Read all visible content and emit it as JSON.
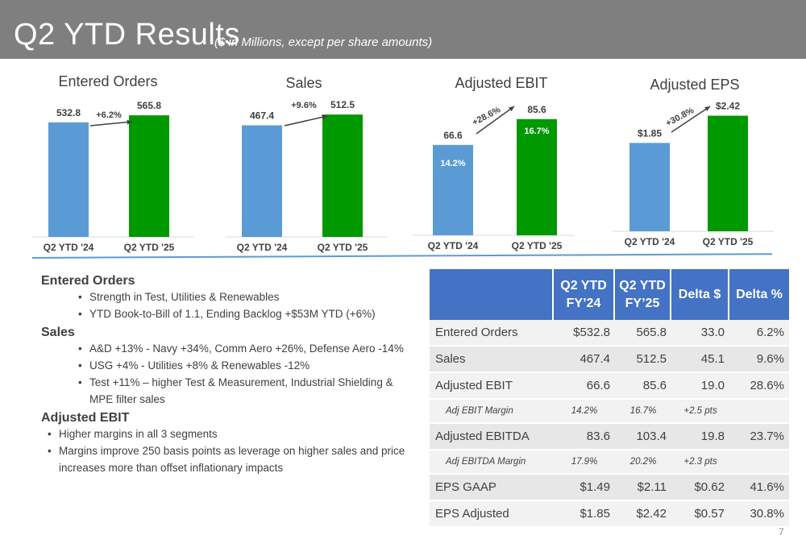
{
  "header": {
    "title": "Q2 YTD Results",
    "subtitle": "($ in Millions, except per share amounts)"
  },
  "colors": {
    "header_bg": "#7f7f7f",
    "prior_bar": "#5b9bd5",
    "current_bar": "#009900",
    "table_header": "#4472c4"
  },
  "chart_data": [
    {
      "type": "bar",
      "title": "Entered Orders",
      "categories": [
        "Q2 YTD '24",
        "Q2 YTD '25"
      ],
      "values": [
        532.8,
        565.8
      ],
      "value_labels": [
        "532.8",
        "565.8"
      ],
      "growth_label": "+6.2%",
      "ylim": [
        0,
        600
      ]
    },
    {
      "type": "bar",
      "title": "Sales",
      "categories": [
        "Q2 YTD '24",
        "Q2 YTD '25"
      ],
      "values": [
        467.4,
        512.5
      ],
      "value_labels": [
        "467.4",
        "512.5"
      ],
      "growth_label": "+9.6%",
      "ylim": [
        0,
        540
      ]
    },
    {
      "type": "bar",
      "title": "Adjusted EBIT",
      "categories": [
        "Q2 YTD '24",
        "Q2 YTD '25"
      ],
      "values": [
        66.6,
        85.6
      ],
      "value_labels": [
        "66.6",
        "85.6"
      ],
      "inner_labels": [
        "14.2%",
        "16.7%"
      ],
      "growth_label": "+28.6%",
      "ylim": [
        0,
        95
      ]
    },
    {
      "type": "bar",
      "title": "Adjusted EPS",
      "categories": [
        "Q2 YTD '24",
        "Q2 YTD '25"
      ],
      "values": [
        1.85,
        2.42
      ],
      "value_labels": [
        "$1.85",
        "$2.42"
      ],
      "growth_label": "+30.8%",
      "ylim": [
        0,
        2.7
      ]
    }
  ],
  "notes": {
    "orders_heading": "Entered Orders",
    "orders_bullets": [
      "Strength in Test, Utilities & Renewables",
      "YTD Book-to-Bill of 1.1, Ending Backlog +$53M YTD (+6%)"
    ],
    "sales_heading": "Sales",
    "sales_bullets": [
      "A&D +13% - Navy +34%, Comm Aero +26%, Defense Aero -14%",
      "USG +4% - Utilities +8% & Renewables -12%",
      "Test +11% – higher Test & Measurement, Industrial Shielding & MPE filter sales"
    ],
    "ebit_heading": "Adjusted EBIT",
    "ebit_bullets": [
      "Higher margins in all 3 segments",
      "Margins improve 250 basis points as leverage on higher sales and price increases more than offset inflationary impacts"
    ]
  },
  "table": {
    "headers": [
      "",
      "Q2 YTD FY’24",
      "Q2 YTD FY’25",
      "Delta $",
      "Delta %"
    ],
    "rows": [
      {
        "label": "Entered Orders",
        "values": [
          "$532.8",
          "565.8",
          "33.0",
          "6.2%"
        ]
      },
      {
        "label": "Sales",
        "values": [
          "467.4",
          "512.5",
          "45.1",
          "9.6%"
        ]
      },
      {
        "label": "Adjusted EBIT",
        "values": [
          "66.6",
          "85.6",
          "19.0",
          "28.6%"
        ]
      },
      {
        "label": "Adj EBIT Margin",
        "values": [
          "14.2%",
          "16.7%",
          "+2.5 pts",
          ""
        ]
      },
      {
        "label": "Adjusted EBITDA",
        "values": [
          "83.6",
          "103.4",
          "19.8",
          "23.7%"
        ]
      },
      {
        "label": "Adj EBITDA Margin",
        "values": [
          "17.9%",
          "20.2%",
          "+2.3 pts",
          ""
        ]
      },
      {
        "label": "EPS GAAP",
        "values": [
          "$1.49",
          "$2.11",
          "$0.62",
          "41.6%"
        ]
      },
      {
        "label": "EPS Adjusted",
        "values": [
          "$1.85",
          "$2.42",
          "$0.57",
          "30.8%"
        ]
      }
    ]
  },
  "page_number": "7"
}
